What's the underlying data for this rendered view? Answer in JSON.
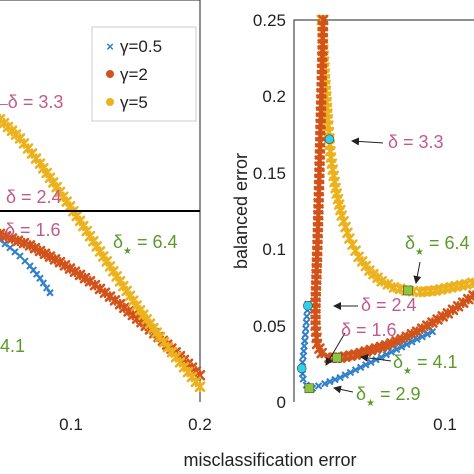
{
  "colors": {
    "gamma_0_5": "#2f7fc9",
    "gamma_2": "#d2531a",
    "gamma_5": "#ecb21e",
    "delta_pink": "#c25a8c",
    "delta_star_green": "#5a9a2a",
    "marker_cyan": "#2fd0e8",
    "marker_green": "#8cc63f",
    "axis": "#222222",
    "hline": "#000000"
  },
  "chart_data": [
    {
      "type": "scatter",
      "panel": "left",
      "title": "",
      "xlabel": "",
      "ylabel": "",
      "xlim": [
        0.0,
        0.2
      ],
      "x_ticks": [
        "0.1",
        "0.2"
      ],
      "legend": {
        "placement": "top-right",
        "entries": [
          {
            "label": "γ=0.5",
            "color_key": "gamma_0_5",
            "marker": "x"
          },
          {
            "label": "γ=2",
            "color_key": "gamma_2",
            "marker": "*"
          },
          {
            "label": "γ=5",
            "color_key": "gamma_5",
            "marker": "*"
          }
        ]
      },
      "series": [
        {
          "name": "γ=0.5",
          "color_key": "gamma_0_5",
          "points": [
            [
              0.0,
              0.462
            ],
            [
              0.01,
              0.452
            ],
            [
              0.02,
              0.441
            ],
            [
              0.03,
              0.428
            ],
            [
              0.04,
              0.412
            ],
            [
              0.05,
              0.393
            ]
          ]
        },
        {
          "name": "γ=2",
          "color_key": "gamma_2",
          "points": [
            [
              0.0,
              0.47
            ],
            [
              0.03,
              0.455
            ],
            [
              0.06,
              0.433
            ],
            [
              0.09,
              0.408
            ],
            [
              0.12,
              0.378
            ],
            [
              0.15,
              0.345
            ],
            [
              0.18,
              0.31
            ],
            [
              0.2,
              0.285
            ]
          ]
        },
        {
          "name": "γ=5",
          "color_key": "gamma_5",
          "points": [
            [
              0.0,
              0.62
            ],
            [
              0.02,
              0.595
            ],
            [
              0.04,
              0.562
            ],
            [
              0.06,
              0.525
            ],
            [
              0.08,
              0.487
            ],
            [
              0.1,
              0.447
            ],
            [
              0.12,
              0.408
            ],
            [
              0.14,
              0.37
            ],
            [
              0.16,
              0.335
            ],
            [
              0.18,
              0.302
            ],
            [
              0.2,
              0.27
            ]
          ]
        }
      ],
      "hline": 0.5,
      "annotations": [
        {
          "text": "δ = 3.3",
          "color_key": "delta_pink"
        },
        {
          "text": "δ = 2.4",
          "color_key": "delta_pink"
        },
        {
          "text": "δ = 1.6",
          "color_key": "delta_pink"
        },
        {
          "text": "δ",
          "sub": "★",
          "rest": " = 6.4",
          "color_key": "delta_star_green"
        },
        {
          "text": "4.1",
          "color_key": "delta_star_green"
        }
      ]
    },
    {
      "type": "scatter",
      "panel": "right",
      "title": "",
      "xlabel": "misclassification error",
      "ylabel": "balanced error",
      "xlim": [
        0.0,
        0.12
      ],
      "ylim": [
        0,
        0.25
      ],
      "x_ticks": [
        "0.1"
      ],
      "y_ticks": [
        "0",
        "0.05",
        "0.1",
        "0.15",
        "0.2",
        "0.25"
      ],
      "series": [
        {
          "name": "γ=0.5",
          "color_key": "gamma_0_5",
          "points": [
            [
              0.009,
              0.064
            ],
            [
              0.008,
              0.052
            ],
            [
              0.007,
              0.04
            ],
            [
              0.006,
              0.03
            ],
            [
              0.005,
              0.022
            ],
            [
              0.006,
              0.015
            ],
            [
              0.008,
              0.011
            ],
            [
              0.012,
              0.009
            ],
            [
              0.02,
              0.012
            ],
            [
              0.03,
              0.016
            ],
            [
              0.04,
              0.021
            ],
            [
              0.05,
              0.026
            ],
            [
              0.06,
              0.031
            ],
            [
              0.07,
              0.036
            ],
            [
              0.08,
              0.041
            ],
            [
              0.09,
              0.046
            ]
          ]
        },
        {
          "name": "γ=2",
          "color_key": "gamma_2",
          "points": [
            [
              0.019,
              0.25
            ],
            [
              0.018,
              0.21
            ],
            [
              0.017,
              0.17
            ],
            [
              0.016,
              0.13
            ],
            [
              0.015,
              0.095
            ],
            [
              0.014,
              0.065
            ],
            [
              0.014,
              0.05
            ],
            [
              0.015,
              0.038
            ],
            [
              0.018,
              0.032
            ],
            [
              0.023,
              0.029
            ],
            [
              0.03,
              0.029
            ],
            [
              0.04,
              0.031
            ],
            [
              0.05,
              0.034
            ],
            [
              0.06,
              0.037
            ],
            [
              0.07,
              0.041
            ],
            [
              0.08,
              0.046
            ],
            [
              0.09,
              0.052
            ],
            [
              0.1,
              0.058
            ],
            [
              0.11,
              0.065
            ],
            [
              0.12,
              0.072
            ]
          ]
        },
        {
          "name": "γ=5",
          "color_key": "gamma_5",
          "points": [
            [
              0.018,
              0.25
            ],
            [
              0.02,
              0.215
            ],
            [
              0.022,
              0.185
            ],
            [
              0.024,
              0.16
            ],
            [
              0.027,
              0.14
            ],
            [
              0.031,
              0.122
            ],
            [
              0.036,
              0.107
            ],
            [
              0.042,
              0.095
            ],
            [
              0.049,
              0.086
            ],
            [
              0.057,
              0.079
            ],
            [
              0.065,
              0.075
            ],
            [
              0.073,
              0.073
            ],
            [
              0.082,
              0.072
            ],
            [
              0.092,
              0.073
            ],
            [
              0.102,
              0.075
            ],
            [
              0.112,
              0.077
            ],
            [
              0.12,
              0.079
            ]
          ]
        }
      ],
      "highlighted_points": [
        {
          "x": 0.023,
          "y": 0.172,
          "color_key": "marker_cyan",
          "shape": "circle"
        },
        {
          "x": 0.009,
          "y": 0.063,
          "color_key": "marker_cyan",
          "shape": "circle"
        },
        {
          "x": 0.005,
          "y": 0.022,
          "color_key": "marker_cyan",
          "shape": "circle"
        },
        {
          "x": 0.074,
          "y": 0.073,
          "color_key": "marker_green",
          "shape": "square"
        },
        {
          "x": 0.028,
          "y": 0.029,
          "color_key": "marker_green",
          "shape": "square"
        },
        {
          "x": 0.01,
          "y": 0.009,
          "color_key": "marker_green",
          "shape": "square"
        }
      ],
      "annotations": [
        {
          "text": "δ = 3.3",
          "color_key": "delta_pink"
        },
        {
          "text": "δ = 2.4",
          "color_key": "delta_pink"
        },
        {
          "text": "δ = 1.6",
          "color_key": "delta_pink"
        },
        {
          "text": "δ",
          "sub": "★",
          "rest": " = 6.4",
          "color_key": "delta_star_green"
        },
        {
          "text": "δ",
          "sub": "★",
          "rest": " = 4.1",
          "color_key": "delta_star_green"
        },
        {
          "text": "δ",
          "sub": "★",
          "rest": " = 2.9",
          "color_key": "delta_star_green"
        }
      ]
    }
  ]
}
